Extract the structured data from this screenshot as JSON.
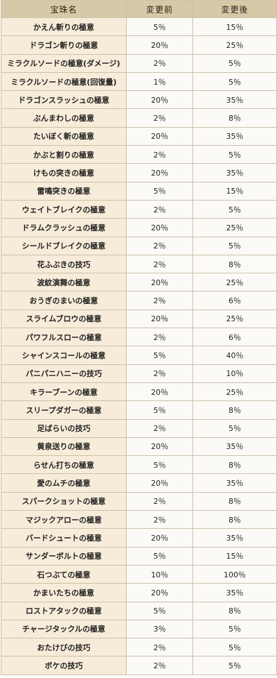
{
  "table": {
    "headers": [
      "宝珠名",
      "変更前",
      "変更後"
    ],
    "rows": [
      [
        "かえん斬りの極意",
        "5％",
        "15％"
      ],
      [
        "ドラゴン斬りの極意",
        "20％",
        "25％"
      ],
      [
        "ミラクルソードの極意(ダメージ)",
        "2％",
        "5％"
      ],
      [
        "ミラクルソードの極意(回復量)",
        "1％",
        "5％"
      ],
      [
        "ドラゴンスラッシュの極意",
        "20％",
        "35％"
      ],
      [
        "ぶんまわしの極意",
        "2％",
        "8％"
      ],
      [
        "たいぼく斬の極意",
        "20％",
        "35％"
      ],
      [
        "かぶと割りの極意",
        "2％",
        "5％"
      ],
      [
        "けもの突きの極意",
        "20％",
        "35％"
      ],
      [
        "雷鳴突きの極意",
        "5％",
        "15％"
      ],
      [
        "ウェイトブレイクの極意",
        "2％",
        "5％"
      ],
      [
        "ドラムクラッシュの極意",
        "20％",
        "25％"
      ],
      [
        "シールドブレイクの極意",
        "2％",
        "5％"
      ],
      [
        "花ふぶきの技巧",
        "2％",
        "8％"
      ],
      [
        "波紋演舞の極意",
        "20％",
        "25％"
      ],
      [
        "おうぎのまいの極意",
        "2％",
        "6％"
      ],
      [
        "スライムブロウの極意",
        "20％",
        "25％"
      ],
      [
        "パワフルスローの極意",
        "2％",
        "6％"
      ],
      [
        "シャインスコールの極意",
        "5％",
        "40％"
      ],
      [
        "パニパニハニーの技巧",
        "2％",
        "10％"
      ],
      [
        "キラーブーンの極意",
        "20％",
        "25％"
      ],
      [
        "スリープダガーの極意",
        "5％",
        "8％"
      ],
      [
        "足ばらいの技巧",
        "2％",
        "5％"
      ],
      [
        "黄泉送りの極意",
        "20％",
        "35％"
      ],
      [
        "らせん打ちの極意",
        "5％",
        "8％"
      ],
      [
        "愛のムチの極意",
        "20％",
        "35％"
      ],
      [
        "スパークショットの極意",
        "2％",
        "8％"
      ],
      [
        "マジックアローの極意",
        "2％",
        "8％"
      ],
      [
        "バードシュートの極意",
        "20％",
        "35％"
      ],
      [
        "サンダーボルトの極意",
        "5％",
        "15％"
      ],
      [
        "石つぶての極意",
        "10％",
        "100％"
      ],
      [
        "かまいたちの極意",
        "20％",
        "35％"
      ],
      [
        "ロストアタックの極意",
        "5％",
        "8％"
      ],
      [
        "チャージタックルの極意",
        "3％",
        "5％"
      ],
      [
        "おたけびの技巧",
        "2％",
        "5％"
      ],
      [
        "ボケの技巧",
        "2％",
        "5％"
      ]
    ]
  }
}
